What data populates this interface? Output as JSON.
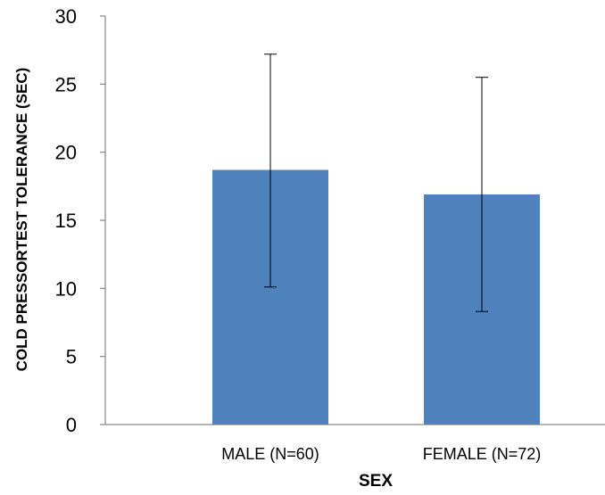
{
  "chart_data": {
    "type": "bar",
    "categories": [
      "MALE (N=60)",
      "FEMALE (N=72)"
    ],
    "values": [
      18.7,
      16.9
    ],
    "error_high": [
      27.2,
      25.5
    ],
    "error_low": [
      10.1,
      8.3
    ],
    "xlabel": "SEX",
    "ylabel": "COLD PRESSORTEST TOLERANCE (SEC)",
    "ylim": [
      0,
      30
    ],
    "yticks": [
      "0",
      "5",
      "10",
      "15",
      "20",
      "25",
      "30"
    ],
    "grid": false,
    "bar_color": "#4f81bd",
    "errorbar_color": "#000000",
    "axis_color": "#868686"
  }
}
